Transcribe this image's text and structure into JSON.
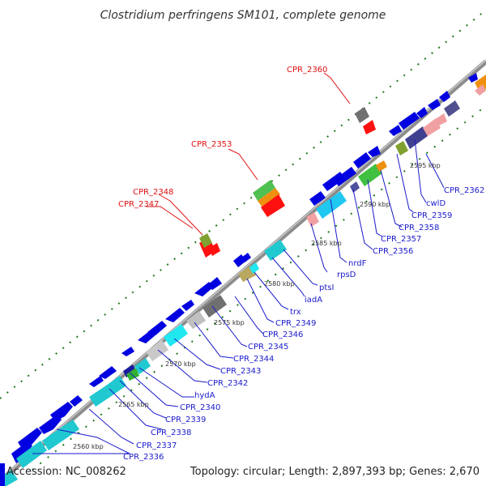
{
  "title": "Clostridium perfringens SM101, complete genome",
  "footer": {
    "accession": "Accession: NC_008262",
    "summary": "Topology: circular; Length: 2,897,393 bp; Genes: 2,670"
  },
  "colors": {
    "backbone": "#9a9a9a",
    "label_blue": "#1a1acc",
    "label_red": "#e01010",
    "tick_green": "#1e7a1e"
  },
  "ticks": [
    "2560 kbp",
    "2565 kbp",
    "2570 kbp",
    "2575 kbp",
    "2580 kbp",
    "2585 kbp",
    "2590 kbp",
    "2595 kbp"
  ],
  "gene_labels": [
    {
      "text": "CPR_2336",
      "color": "blue"
    },
    {
      "text": "CPR_2337",
      "color": "blue"
    },
    {
      "text": "CPR_2338",
      "color": "blue"
    },
    {
      "text": "CPR_2339",
      "color": "blue"
    },
    {
      "text": "CPR_2340",
      "color": "blue"
    },
    {
      "text": "hydA",
      "color": "blue"
    },
    {
      "text": "CPR_2342",
      "color": "blue"
    },
    {
      "text": "CPR_2343",
      "color": "blue"
    },
    {
      "text": "CPR_2344",
      "color": "blue"
    },
    {
      "text": "CPR_2345",
      "color": "blue"
    },
    {
      "text": "CPR_2346",
      "color": "blue"
    },
    {
      "text": "CPR_2349",
      "color": "blue"
    },
    {
      "text": "trx",
      "color": "blue"
    },
    {
      "text": "iadA",
      "color": "blue"
    },
    {
      "text": "ptsI",
      "color": "blue"
    },
    {
      "text": "rpsD",
      "color": "blue"
    },
    {
      "text": "nrdF",
      "color": "blue"
    },
    {
      "text": "CPR_2356",
      "color": "blue"
    },
    {
      "text": "CPR_2357",
      "color": "blue"
    },
    {
      "text": "CPR_2358",
      "color": "blue"
    },
    {
      "text": "CPR_2359",
      "color": "blue"
    },
    {
      "text": "cwlD",
      "color": "blue"
    },
    {
      "text": "CPR_2362",
      "color": "blue"
    },
    {
      "text": "CPR_2347",
      "color": "red"
    },
    {
      "text": "CPR_2348",
      "color": "red"
    },
    {
      "text": "CPR_2353",
      "color": "red"
    },
    {
      "text": "CPR_2360",
      "color": "red"
    }
  ]
}
